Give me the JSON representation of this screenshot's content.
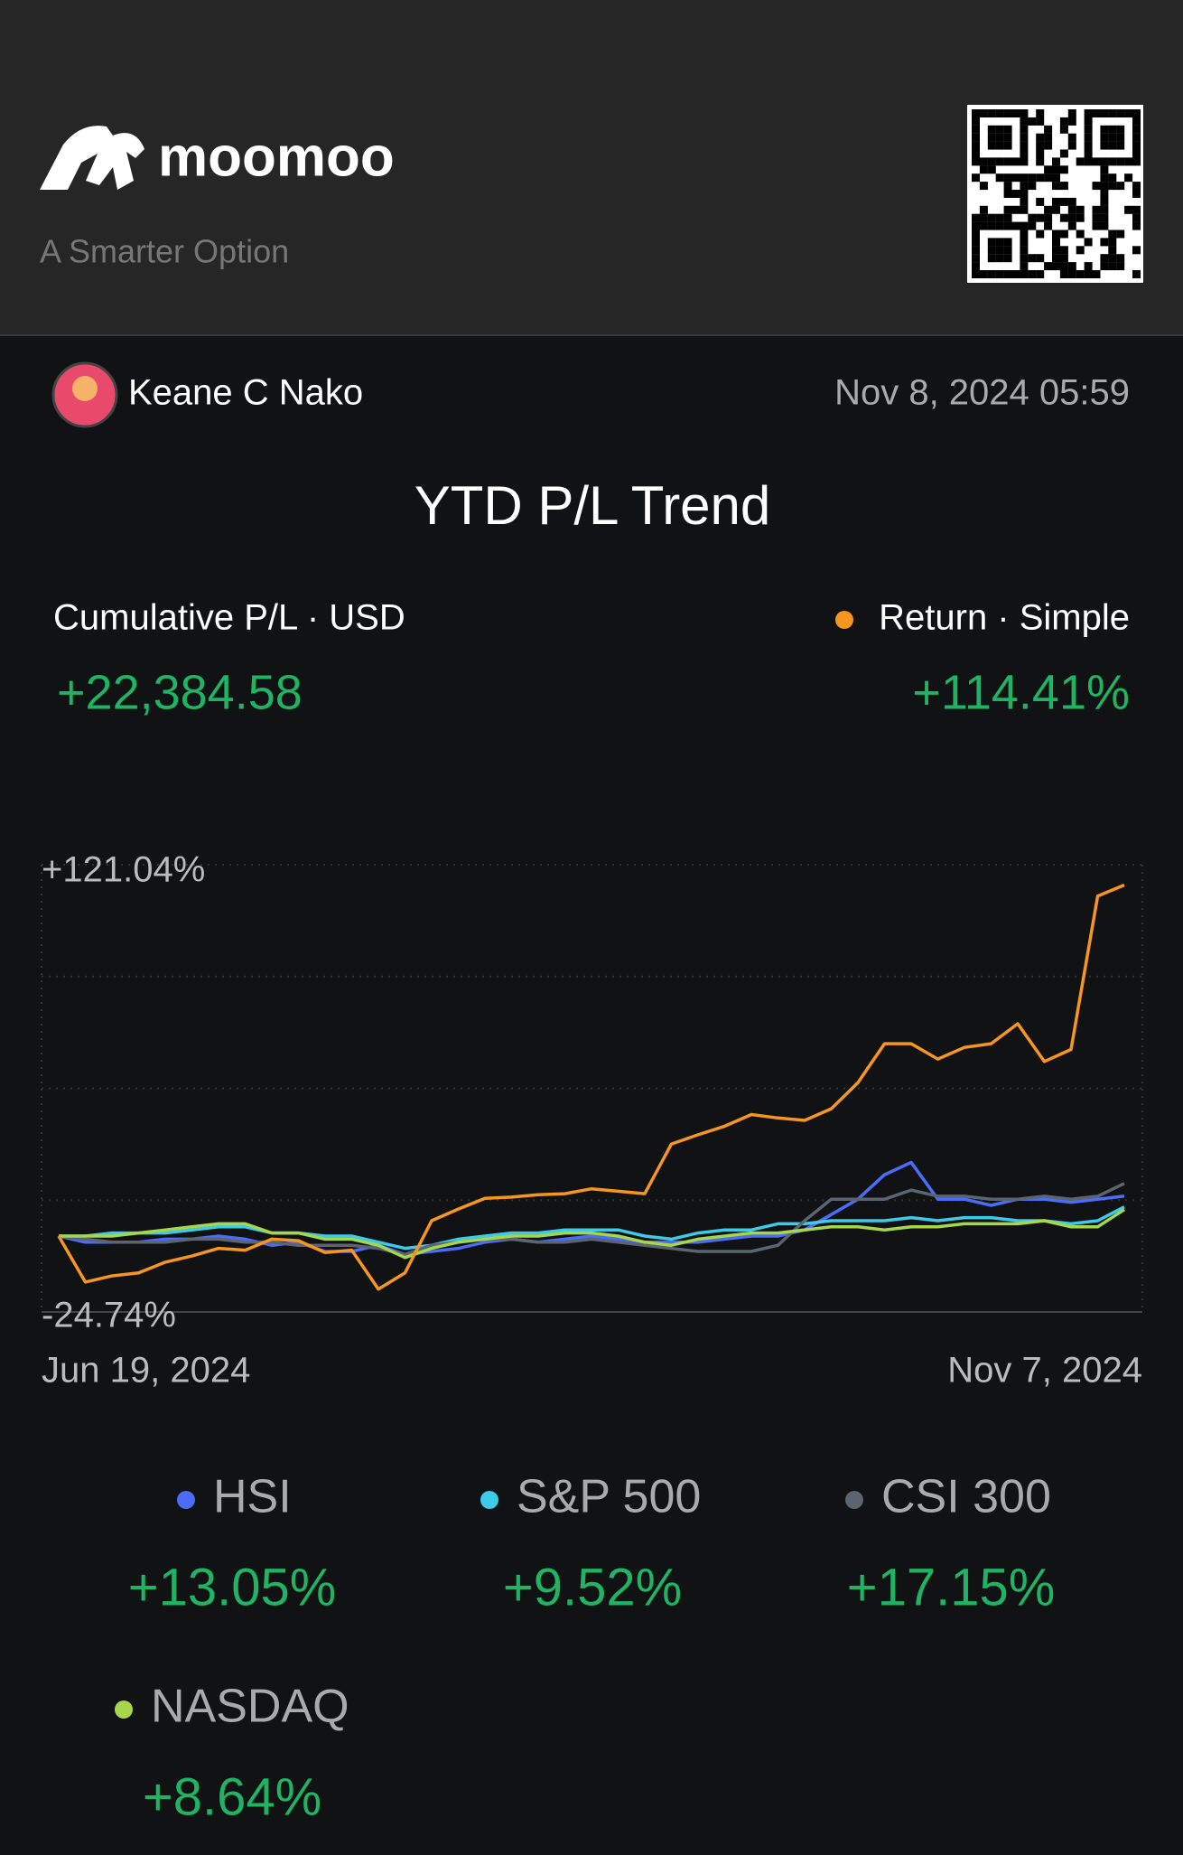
{
  "header": {
    "brand": "moomoo",
    "tagline": "A Smarter Option"
  },
  "user": {
    "name": "Keane C Nako",
    "timestamp": "Nov 8, 2024 05:59"
  },
  "chart_data": {
    "type": "line",
    "title": "YTD P/L Trend",
    "pl_label": "Cumulative P/L · USD",
    "pl_total": "+22,384.58",
    "categories": [
      "Jun 19, 2024",
      null,
      null,
      null,
      null,
      null,
      null,
      null,
      null,
      null,
      null,
      null,
      null,
      null,
      null,
      null,
      null,
      null,
      null,
      null,
      null,
      null,
      null,
      null,
      null,
      null,
      null,
      null,
      null,
      null,
      null,
      null,
      null,
      null,
      null,
      null,
      null,
      null,
      null,
      null,
      "Nov 7, 2024"
    ],
    "ylim": [
      -24.74,
      121.04
    ],
    "yticks": [
      {
        "value": 121.04,
        "label": "+121.04%"
      },
      {
        "value": -24.74,
        "label": "-24.74%"
      }
    ],
    "grid": true,
    "series": [
      {
        "name": "Return · Simple",
        "color": "#f7961f",
        "total": "+114.41%",
        "values": [
          0,
          -15,
          -13,
          -12,
          -8.5,
          -6.5,
          -4,
          -4.6,
          -1,
          -1.5,
          -5.4,
          -4.6,
          -17.3,
          -12,
          5,
          8.8,
          12.3,
          12.7,
          13.5,
          13.8,
          15.4,
          14.6,
          13.8,
          30,
          33,
          35.8,
          39.6,
          38.5,
          37.7,
          41.5,
          50,
          62.7,
          62.7,
          57.7,
          61.5,
          62.7,
          69.2,
          56.9,
          60.8,
          110.8,
          114.41
        ]
      },
      {
        "name": "HSI",
        "color": "#4a6cf7",
        "total": "+13.05%",
        "values": [
          0,
          -2,
          -2,
          -2,
          -1,
          -1,
          0,
          -1,
          -3,
          -2,
          -5,
          -5,
          -3,
          -6,
          -5,
          -4,
          -2,
          -1,
          -2,
          -1,
          0,
          -1,
          -2,
          -2,
          -2,
          -1,
          0,
          0,
          2,
          7,
          12,
          20,
          24,
          12,
          12,
          10,
          12,
          12,
          11,
          12,
          13.05
        ]
      },
      {
        "name": "S&P 500",
        "color": "#3ccbe8",
        "total": "+9.52%",
        "values": [
          0,
          0,
          1,
          1,
          1,
          2,
          3,
          3,
          1,
          1,
          0,
          0,
          -2,
          -4,
          -3,
          -1,
          0,
          1,
          1,
          2,
          2,
          2,
          0,
          -1,
          1,
          2,
          2,
          4,
          4,
          5,
          5,
          5,
          6,
          5,
          6,
          6,
          5,
          5,
          4,
          5,
          9.52
        ]
      },
      {
        "name": "CSI 300",
        "color": "#5b6470",
        "total": "+17.15%",
        "values": [
          0,
          -1,
          -2,
          -2,
          -2,
          -1,
          -1,
          -2,
          -2,
          -3,
          -3,
          -3,
          -4,
          -6,
          -3,
          -2,
          -1,
          -1,
          -2,
          -2,
          -1,
          -2,
          -3,
          -4,
          -5,
          -5,
          -5,
          -3,
          5,
          12,
          12,
          12,
          15,
          13,
          13,
          12,
          12,
          13,
          12,
          13,
          17.15
        ]
      },
      {
        "name": "NASDAQ",
        "color": "#a6d64a",
        "total": "+8.64%",
        "values": [
          0,
          0,
          0,
          1,
          2,
          3,
          4,
          4,
          1,
          1,
          -1,
          -1,
          -3,
          -7,
          -4,
          -2,
          -1,
          0,
          0,
          1,
          1,
          0,
          -2,
          -3,
          -1,
          0,
          1,
          1,
          2,
          3,
          3,
          2,
          3,
          3,
          4,
          4,
          4,
          5,
          3,
          3,
          8.64
        ]
      }
    ]
  }
}
